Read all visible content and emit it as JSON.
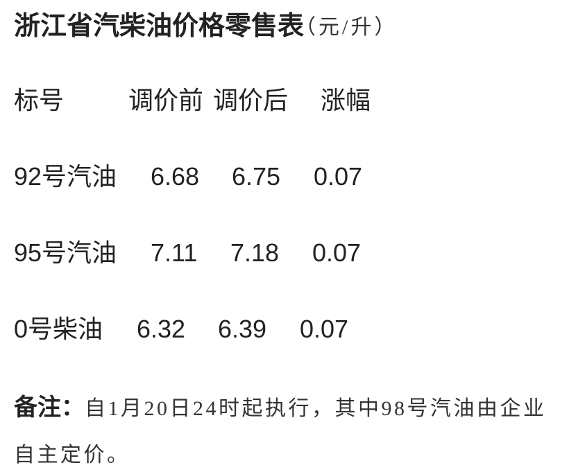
{
  "header": {
    "title": "浙江省汽柴油价格零售表",
    "unit": "（元/升）"
  },
  "table": {
    "columns": [
      "标号",
      "调价前",
      "调价后",
      "涨幅"
    ],
    "rows": [
      [
        "92号汽油",
        "6.68",
        "6.75",
        "0.07"
      ],
      [
        "95号汽油",
        "7.11",
        "7.18",
        "0.07"
      ],
      [
        "0号柴油",
        "6.32",
        "6.39",
        "0.07"
      ]
    ]
  },
  "note": {
    "label": "备注：",
    "text": "自1月20日24时起执行，其中98号汽油由企业自主定价。"
  }
}
